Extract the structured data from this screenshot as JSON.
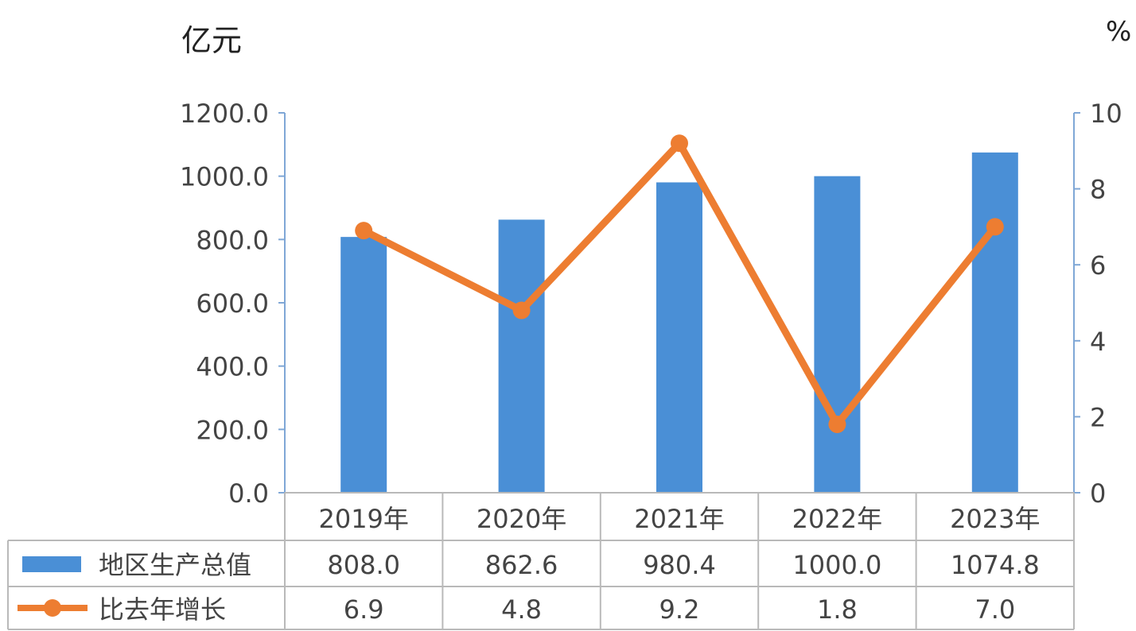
{
  "units": {
    "left": "亿元",
    "right": "%"
  },
  "chart_data": {
    "type": "bar",
    "categories": [
      "2019年",
      "2020年",
      "2021年",
      "2022年",
      "2023年"
    ],
    "y_left": {
      "ylim": [
        0,
        1200
      ],
      "ticks": [
        "0.0",
        "200.0",
        "400.0",
        "600.0",
        "800.0",
        "1000.0",
        "1200.0"
      ]
    },
    "y_right": {
      "ylim": [
        0,
        10
      ],
      "ticks": [
        "0",
        "2",
        "4",
        "6",
        "8",
        "10"
      ]
    },
    "series": [
      {
        "name": "地区生产总值",
        "type": "bar",
        "axis": "left",
        "color": "#4A8FD6",
        "values": [
          808.0,
          862.6,
          980.4,
          1000.0,
          1074.8
        ],
        "labels": [
          "808.0",
          "862.6",
          "980.4",
          "1000.0",
          "1074.8"
        ]
      },
      {
        "name": "比去年增长",
        "type": "line",
        "axis": "right",
        "color": "#ED7D31",
        "values": [
          6.9,
          4.8,
          9.2,
          1.8,
          7.0
        ],
        "labels": [
          "6.9",
          "4.8",
          "9.2",
          "1.8",
          "7.0"
        ]
      }
    ],
    "grid": false,
    "legend": "data-table-below"
  }
}
